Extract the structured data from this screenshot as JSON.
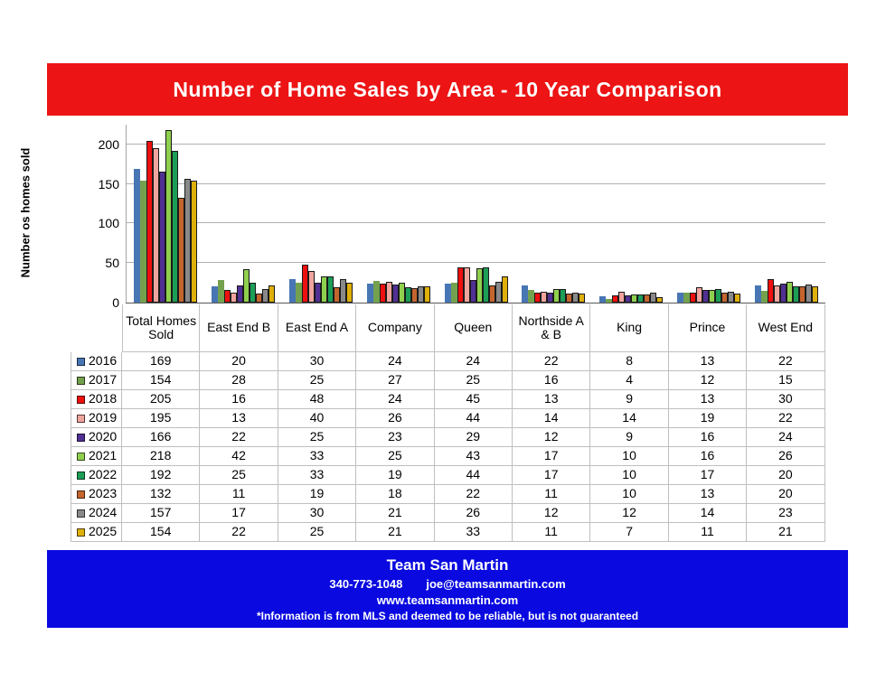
{
  "page": {
    "title": "Number of Home Sales by Area - 10 Year Comparison",
    "title_bg": "#EC1414",
    "footer_bg": "#0909E0"
  },
  "chart_data": {
    "type": "bar",
    "title": "Number of Home Sales by Area - 10 Year Comparison",
    "ylabel": "Number os homes sold",
    "xlabel": "",
    "ylim": [
      0,
      225
    ],
    "yticks": [
      0,
      50,
      100,
      150,
      200
    ],
    "grid": true,
    "legend_position": "table-left-column",
    "gridline_color": "#B0B0B0",
    "categories": [
      "Total Homes Sold",
      "East End B",
      "East End A",
      "Company",
      "Queen",
      "Northside A & B",
      "King",
      "Prince",
      "West End"
    ],
    "series": [
      {
        "name": "2016",
        "color": "#4876B4",
        "border": false,
        "values": [
          169,
          20,
          30,
          24,
          24,
          22,
          8,
          13,
          22
        ]
      },
      {
        "name": "2017",
        "color": "#74A14E",
        "border": false,
        "values": [
          154,
          28,
          25,
          27,
          25,
          16,
          4,
          12,
          15
        ]
      },
      {
        "name": "2018",
        "color": "#EE0F0F",
        "border": true,
        "values": [
          205,
          16,
          48,
          24,
          45,
          13,
          9,
          13,
          30
        ]
      },
      {
        "name": "2019",
        "color": "#F0A49E",
        "border": true,
        "values": [
          195,
          13,
          40,
          26,
          44,
          14,
          14,
          19,
          22
        ]
      },
      {
        "name": "2020",
        "color": "#513093",
        "border": true,
        "values": [
          166,
          22,
          25,
          23,
          29,
          12,
          9,
          16,
          24
        ]
      },
      {
        "name": "2021",
        "color": "#8FD04E",
        "border": true,
        "values": [
          218,
          42,
          33,
          25,
          43,
          17,
          10,
          16,
          26
        ]
      },
      {
        "name": "2022",
        "color": "#1C9E57",
        "border": true,
        "values": [
          192,
          25,
          33,
          19,
          44,
          17,
          10,
          17,
          20
        ]
      },
      {
        "name": "2023",
        "color": "#C4652E",
        "border": true,
        "values": [
          132,
          11,
          19,
          18,
          22,
          11,
          10,
          13,
          20
        ]
      },
      {
        "name": "2024",
        "color": "#898989",
        "border": true,
        "values": [
          157,
          17,
          30,
          21,
          26,
          12,
          12,
          14,
          23
        ]
      },
      {
        "name": "2025",
        "color": "#DFAF0A",
        "border": true,
        "values": [
          154,
          22,
          25,
          21,
          33,
          11,
          7,
          11,
          21
        ]
      }
    ]
  },
  "footer": {
    "team": "Team San Martin",
    "phone": "340-773-1048",
    "email": "joe@teamsanmartin.com",
    "website": "www.teamsanmartin.com",
    "disclaimer": "*Information is from MLS and deemed to be reliable, but is not guaranteed"
  }
}
